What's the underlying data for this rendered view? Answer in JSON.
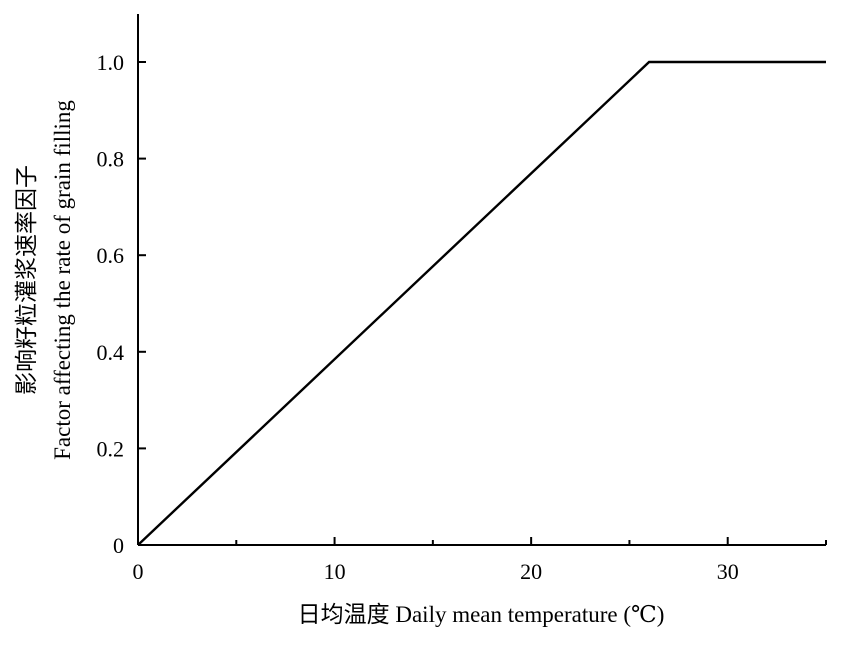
{
  "chart_data": {
    "type": "line",
    "title": "",
    "xlabel": "日均温度 Daily mean temperature (℃)",
    "ylabel": "影响籽粒灌浆速率因子 Factor affecting the rate of grain filling",
    "ylabel_lines": [
      "影响籽粒灌浆速率因子",
      "Factor affecting the rate of grain filling"
    ],
    "xlim": [
      0,
      35
    ],
    "ylim": [
      0,
      1.1
    ],
    "x_ticks": [
      0,
      10,
      20,
      30
    ],
    "x_tick_labels": [
      "0",
      "10",
      "20",
      "30"
    ],
    "y_ticks": [
      0,
      0.2,
      0.4,
      0.6,
      0.8,
      1.0
    ],
    "y_tick_labels": [
      "0",
      "0.2",
      "0.4",
      "0.6",
      "0.8",
      "1.0"
    ],
    "grid": false,
    "series": [
      {
        "x": [
          0,
          26,
          35
        ],
        "y": [
          0,
          1.0,
          1.0
        ],
        "color": "#000000"
      }
    ]
  }
}
